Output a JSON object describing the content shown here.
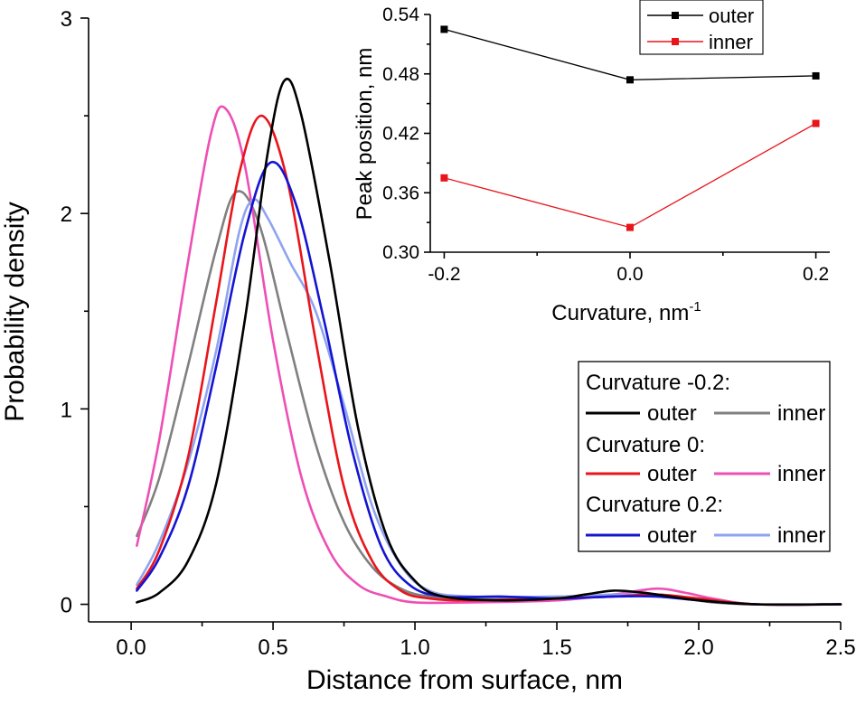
{
  "chart_data": [
    {
      "type": "line",
      "id": "main",
      "xlabel": "Distance from surface, nm",
      "ylabel": "Probability density",
      "xlim": [
        -0.15,
        2.5
      ],
      "ylim": [
        -0.09,
        3.0
      ],
      "xticks": [
        0.0,
        0.5,
        1.0,
        1.5,
        2.0,
        2.5
      ],
      "xtick_labels": [
        "0.0",
        "0.5",
        "1.0",
        "1.5",
        "2.0",
        "2.5"
      ],
      "yticks": [
        0,
        1,
        2,
        3
      ],
      "ytick_labels": [
        "0",
        "1",
        "2",
        "3"
      ],
      "legend": {
        "position": "right",
        "groups": [
          {
            "title": "Curvature -0.2:",
            "entries": [
              {
                "label": "outer",
                "color": "#000000"
              },
              {
                "label": "inner",
                "color": "#808080"
              }
            ]
          },
          {
            "title": "Curvature 0:",
            "entries": [
              {
                "label": "outer",
                "color": "#e8151b"
              },
              {
                "label": "inner",
                "color": "#ee4fb4"
              }
            ]
          },
          {
            "title": "Curvature 0.2:",
            "entries": [
              {
                "label": "outer",
                "color": "#1414d2"
              },
              {
                "label": "inner",
                "color": "#8fa3f0"
              }
            ]
          }
        ]
      },
      "series": [
        {
          "name": "Curvature -0.2 inner",
          "color": "#808080",
          "x": [
            0.02,
            0.1,
            0.2,
            0.3,
            0.37,
            0.45,
            0.55,
            0.65,
            0.75,
            0.85,
            0.95,
            1.05,
            1.2,
            1.4,
            1.6,
            1.8,
            1.95,
            2.05,
            2.2,
            2.5
          ],
          "y": [
            0.35,
            0.65,
            1.22,
            1.82,
            2.11,
            1.95,
            1.38,
            0.82,
            0.42,
            0.19,
            0.08,
            0.04,
            0.03,
            0.03,
            0.04,
            0.05,
            0.03,
            0.01,
            0.0,
            0.0
          ]
        },
        {
          "name": "Curvature 0 inner",
          "color": "#ee4fb4",
          "x": [
            0.02,
            0.1,
            0.2,
            0.28,
            0.33,
            0.4,
            0.5,
            0.6,
            0.7,
            0.8,
            0.9,
            1.0,
            1.2,
            1.5,
            1.7,
            1.85,
            1.95,
            2.05,
            2.2,
            2.5
          ],
          "y": [
            0.3,
            0.85,
            1.75,
            2.4,
            2.54,
            2.25,
            1.35,
            0.65,
            0.27,
            0.1,
            0.04,
            0.01,
            0.01,
            0.02,
            0.05,
            0.08,
            0.06,
            0.03,
            0.0,
            0.0
          ]
        },
        {
          "name": "Curvature 0.2 inner",
          "color": "#8fa3f0",
          "x": [
            0.02,
            0.1,
            0.2,
            0.3,
            0.38,
            0.43,
            0.48,
            0.56,
            0.65,
            0.75,
            0.85,
            0.95,
            1.05,
            1.2,
            1.5,
            1.7,
            1.85,
            2.0,
            2.2,
            2.5
          ],
          "y": [
            0.1,
            0.32,
            0.72,
            1.3,
            1.9,
            2.07,
            1.98,
            1.75,
            1.5,
            1.02,
            0.5,
            0.2,
            0.07,
            0.04,
            0.04,
            0.05,
            0.05,
            0.03,
            0.0,
            0.0
          ]
        },
        {
          "name": "Curvature 0 outer",
          "color": "#e8151b",
          "x": [
            0.02,
            0.1,
            0.2,
            0.3,
            0.38,
            0.46,
            0.55,
            0.65,
            0.75,
            0.85,
            0.95,
            1.05,
            1.2,
            1.5,
            1.7,
            1.85,
            2.0,
            2.2,
            2.5
          ],
          "y": [
            0.08,
            0.28,
            0.75,
            1.55,
            2.2,
            2.5,
            2.17,
            1.35,
            0.6,
            0.22,
            0.07,
            0.03,
            0.02,
            0.03,
            0.04,
            0.05,
            0.03,
            0.0,
            0.0
          ]
        },
        {
          "name": "Curvature 0.2 outer",
          "color": "#1414d2",
          "x": [
            0.02,
            0.1,
            0.2,
            0.3,
            0.4,
            0.49,
            0.58,
            0.68,
            0.78,
            0.88,
            0.98,
            1.1,
            1.3,
            1.5,
            1.7,
            1.85,
            2.0,
            2.2,
            2.5
          ],
          "y": [
            0.07,
            0.24,
            0.6,
            1.22,
            1.9,
            2.26,
            2.05,
            1.45,
            0.78,
            0.3,
            0.1,
            0.04,
            0.04,
            0.03,
            0.04,
            0.04,
            0.02,
            0.0,
            0.0
          ]
        },
        {
          "name": "Curvature -0.2 outer",
          "color": "#000000",
          "x": [
            0.02,
            0.1,
            0.2,
            0.3,
            0.4,
            0.48,
            0.54,
            0.6,
            0.7,
            0.8,
            0.9,
            1.0,
            1.1,
            1.3,
            1.5,
            1.6,
            1.7,
            1.8,
            1.9,
            2.0,
            2.2,
            2.5
          ],
          "y": [
            0.01,
            0.06,
            0.22,
            0.62,
            1.45,
            2.3,
            2.68,
            2.5,
            1.75,
            0.9,
            0.35,
            0.12,
            0.04,
            0.02,
            0.03,
            0.05,
            0.07,
            0.06,
            0.04,
            0.02,
            0.0,
            0.0
          ]
        }
      ]
    },
    {
      "type": "line",
      "id": "inset",
      "xlabel": "Curvature, nm",
      "xlabel_superscript": "-1",
      "ylabel": "Peak position, nm",
      "xlim": [
        -0.215,
        0.215
      ],
      "ylim": [
        0.3,
        0.54
      ],
      "xticks": [
        -0.2,
        0.0,
        0.2
      ],
      "xtick_labels": [
        "-0.2",
        "0.0",
        "0.2"
      ],
      "yticks": [
        0.3,
        0.36,
        0.42,
        0.48,
        0.54
      ],
      "ytick_labels": [
        "0.30",
        "0.36",
        "0.42",
        "0.48",
        "0.54"
      ],
      "legend_position": "top-right",
      "series": [
        {
          "name": "outer",
          "color": "#000000",
          "x": [
            -0.2,
            0.0,
            0.2
          ],
          "y": [
            0.525,
            0.474,
            0.478
          ]
        },
        {
          "name": "inner",
          "color": "#e8151b",
          "x": [
            -0.2,
            0.0,
            0.2
          ],
          "y": [
            0.375,
            0.325,
            0.43
          ]
        }
      ]
    }
  ]
}
